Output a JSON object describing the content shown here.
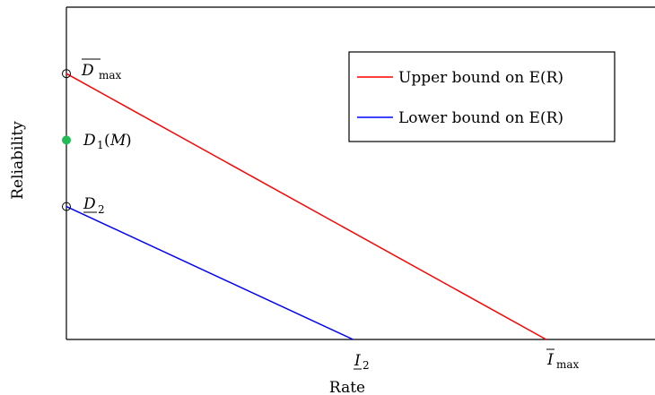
{
  "chart_data": {
    "type": "line",
    "xlabel": "Rate",
    "ylabel": "Reliability",
    "xlim": [
      0,
      1.0
    ],
    "ylim": [
      0,
      1.0
    ],
    "grid": false,
    "legend_position": "top-right",
    "series": [
      {
        "name": "Upper bound on E(R)",
        "color": "#ff0000",
        "points": [
          [
            0,
            0.8
          ],
          [
            0.815,
            0
          ]
        ]
      },
      {
        "name": "Lower bound on E(R)",
        "color": "#0000ff",
        "points": [
          [
            0,
            0.4
          ],
          [
            0.487,
            0
          ]
        ]
      }
    ],
    "points": [
      {
        "label": "D_max",
        "x": 0,
        "y": 0.8,
        "style": "open",
        "color": "#000000"
      },
      {
        "label": "D1(M)",
        "x": 0,
        "y": 0.6,
        "style": "filled",
        "color": "#22bb55"
      },
      {
        "label": "D_2",
        "x": 0,
        "y": 0.4,
        "style": "open",
        "color": "#000000"
      }
    ],
    "xticks": [
      {
        "label": "I_2",
        "x": 0.487
      },
      {
        "label": "I_max",
        "x": 0.815
      }
    ]
  }
}
